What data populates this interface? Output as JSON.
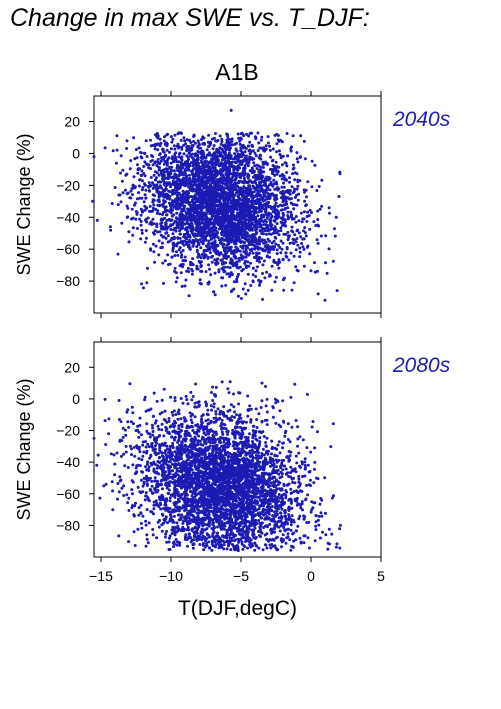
{
  "figure_title": "Change in max SWE vs. T_DJF:",
  "scenario": "A1B",
  "colors": {
    "points": "#1c1cb4",
    "period_label": "#1a1fb0",
    "frame": "#000000"
  },
  "chart_data": [
    {
      "type": "scatter",
      "period_label": "2040s",
      "xlabel": "",
      "ylabel": "SWE Change (%)",
      "xlim": [
        -15.5,
        5
      ],
      "ylim": [
        -100,
        36
      ],
      "yticks": [
        "20",
        "0",
        "−20",
        "−40",
        "−60",
        "−80"
      ],
      "ytick_values": [
        20,
        0,
        -20,
        -40,
        -60,
        -80
      ],
      "xticks": [],
      "xtick_values": [
        -15,
        -10,
        -5,
        0,
        5
      ],
      "cloud": {
        "x_center": -6.5,
        "x_spread": 2.8,
        "y_center": -30,
        "y_spread": 22,
        "y_max": 13,
        "y_min": -92
      },
      "extra_points": [
        [
          -5.7,
          27
        ],
        [
          -15.5,
          -2
        ],
        [
          -15.6,
          -30
        ],
        [
          2.0,
          -27
        ],
        [
          1.8,
          -40
        ],
        [
          1.0,
          -92
        ]
      ]
    },
    {
      "type": "scatter",
      "period_label": "2080s",
      "xlabel": "T(DJF,degC)",
      "ylabel": "SWE Change (%)",
      "xlim": [
        -15.5,
        5
      ],
      "ylim": [
        -100,
        36
      ],
      "yticks": [
        "20",
        "0",
        "−20",
        "−40",
        "−60",
        "−80"
      ],
      "ytick_values": [
        20,
        0,
        -20,
        -40,
        -60,
        -80
      ],
      "xticks": [
        "−15",
        "−10",
        "−5",
        "0",
        "5"
      ],
      "xtick_values": [
        -15,
        -10,
        -5,
        0,
        5
      ],
      "cloud": {
        "x_center": -6.5,
        "x_spread": 2.9,
        "y_center": -55,
        "y_spread": 24,
        "y_max": 11,
        "y_min": -96
      },
      "extra_points": [
        [
          -15.5,
          -25
        ],
        [
          -15.3,
          -42
        ],
        [
          -14.8,
          -55
        ],
        [
          2.1,
          -80
        ],
        [
          1.2,
          -95
        ],
        [
          -3.5,
          10
        ]
      ]
    }
  ]
}
